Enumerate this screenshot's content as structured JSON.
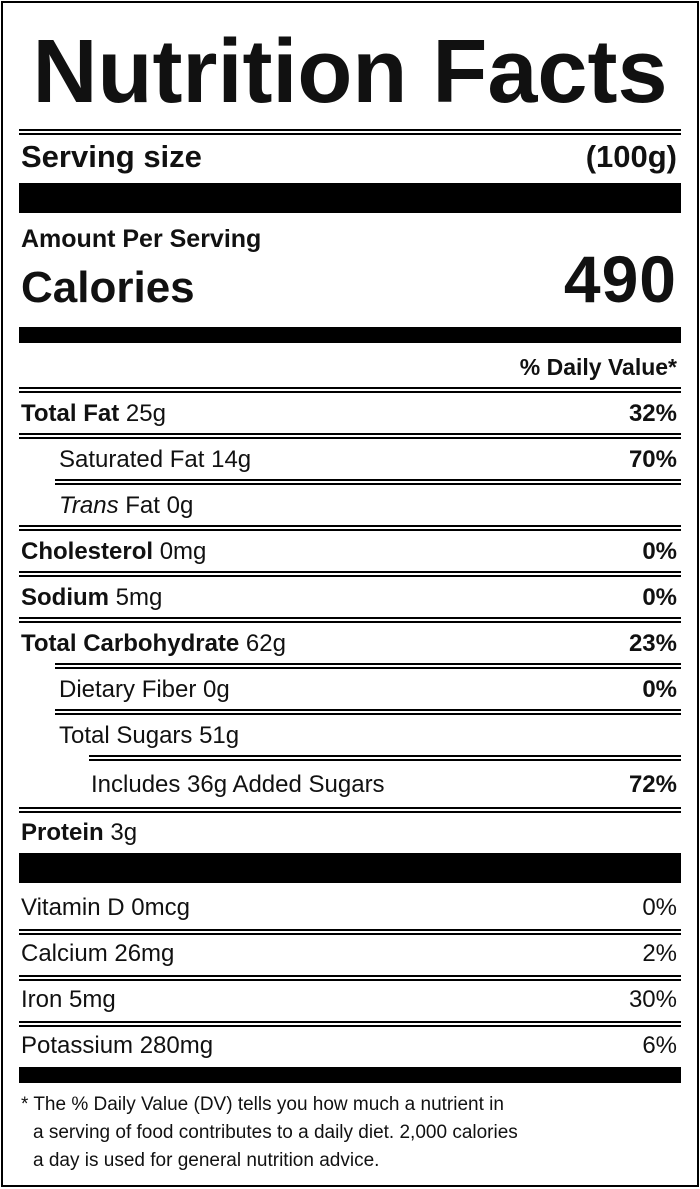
{
  "title": "Nutrition Facts",
  "serving": {
    "label": "Serving size",
    "value": "(100g)"
  },
  "amount_per_serving": "Amount Per Serving",
  "calories": {
    "label": "Calories",
    "value": "490"
  },
  "daily_value_header": "% Daily Value*",
  "nutrients": {
    "total_fat": {
      "label": "Total Fat",
      "amount": "25g",
      "dv": "32%"
    },
    "saturated_fat": {
      "label": "Saturated Fat",
      "amount": "14g",
      "dv": "70%"
    },
    "trans_fat": {
      "label_italic": "Trans",
      "label": "Fat",
      "amount": "0g"
    },
    "cholesterol": {
      "label": "Cholesterol",
      "amount": "0mg",
      "dv": "0%"
    },
    "sodium": {
      "label": "Sodium",
      "amount": "5mg",
      "dv": "0%"
    },
    "total_carbohydrate": {
      "label": "Total Carbohydrate",
      "amount": "62g",
      "dv": "23%"
    },
    "dietary_fiber": {
      "label": "Dietary Fiber",
      "amount": "0g",
      "dv": "0%"
    },
    "total_sugars": {
      "label": "Total Sugars",
      "amount": "51g"
    },
    "added_sugars": {
      "label": "Includes 36g Added Sugars",
      "dv": "72%"
    },
    "protein": {
      "label": "Protein",
      "amount": "3g"
    }
  },
  "vitamins": {
    "vitamin_d": {
      "label": "Vitamin D 0mcg",
      "dv": "0%"
    },
    "calcium": {
      "label": "Calcium 26mg",
      "dv": "2%"
    },
    "iron": {
      "label": "Iron 5mg",
      "dv": "30%"
    },
    "potassium": {
      "label": "Potassium 280mg",
      "dv": "6%"
    }
  },
  "footnote": {
    "line1": "* The % Daily Value (DV) tells you how much a nutrient in",
    "line2": "a serving of food contributes to a daily diet. 2,000 calories",
    "line3": "a day is used for general nutrition advice."
  }
}
